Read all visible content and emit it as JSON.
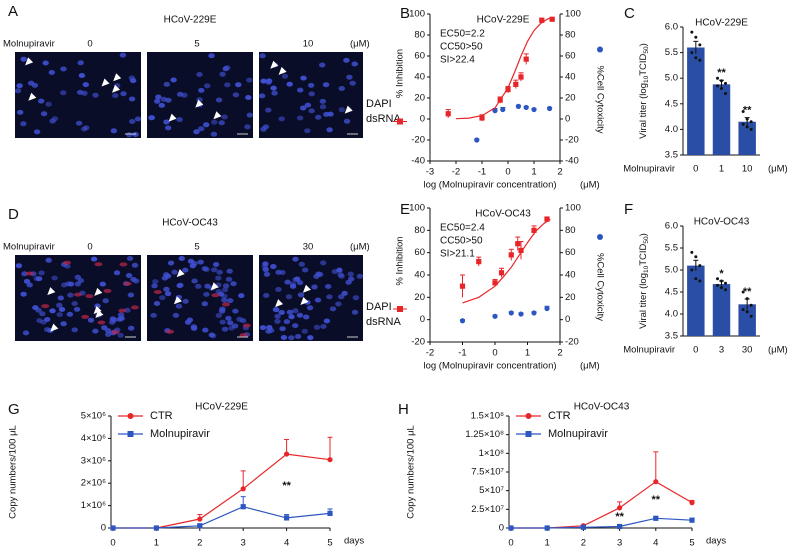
{
  "image_panels": [
    {
      "label": "A",
      "title": "HCoV-229E",
      "treatment": "Molnupiravir",
      "doses": [
        "0",
        "5",
        "10"
      ],
      "unit": "(μM)",
      "stains": [
        "DAPI",
        "dsRNA"
      ],
      "stain_colors": [
        "#3b3bd6",
        "#e02424"
      ]
    },
    {
      "label": "D",
      "title": "HCoV-OC43",
      "treatment": "Molnupiravir",
      "doses": [
        "0",
        "5",
        "30"
      ],
      "unit": "(μM)",
      "stains": [
        "DAPI",
        "dsRNA"
      ],
      "stain_colors": [
        "#3b3bd6",
        "#e02424"
      ]
    }
  ],
  "chart_data": [
    {
      "type": "scatter",
      "panel": "B",
      "title": "HCoV-229E",
      "annotations": [
        "EC50=2.2",
        "CC50>50",
        "SI>22.4"
      ],
      "xlabel": "log (Molnupiravir concentration)",
      "xunit": "(μM)",
      "ylabel": "% Inhibition",
      "y2label": "%Cell Cytoxicity",
      "xlim": [
        -3,
        2
      ],
      "xticks": [
        -3,
        -2,
        -1,
        0,
        1,
        2
      ],
      "ylim": [
        -40,
        100
      ],
      "yticks": [
        -40,
        -20,
        0,
        20,
        40,
        60,
        80,
        100
      ],
      "y2lim": [
        -40,
        100
      ],
      "y2ticks": [
        -40,
        -20,
        0,
        20,
        40,
        60,
        80,
        100
      ],
      "series": [
        {
          "color": "#e8262a",
          "marker": "square",
          "x": [
            -2.3,
            -1,
            -0.3,
            0,
            0.3,
            0.5,
            0.7,
            1.3,
            1.7
          ],
          "values": [
            5,
            1,
            18,
            28,
            33,
            40,
            57,
            94,
            95
          ],
          "errors": [
            4,
            3,
            3,
            3,
            4,
            4,
            5,
            2,
            1
          ]
        },
        {
          "color": "#2c56c0",
          "marker": "circle",
          "axis": "y2",
          "x": [
            -1.2,
            -0.5,
            -0.2,
            0.4,
            0.7,
            1.0,
            1.6
          ],
          "values": [
            -20,
            8,
            9,
            12,
            11,
            9,
            10
          ],
          "errors": [
            1,
            2,
            2,
            1,
            1,
            1,
            1
          ]
        },
        {
          "color": "#e8262a",
          "marker": "none",
          "x": [
            -2,
            -1.5,
            -1,
            -0.5,
            0,
            0.25,
            0.5,
            0.75,
            1,
            1.25,
            1.5,
            1.7
          ],
          "values": [
            0.3,
            0.9,
            3.2,
            10.6,
            29.7,
            44.3,
            60,
            73.9,
            84.2,
            90.9,
            95,
            96.9
          ]
        }
      ]
    },
    {
      "type": "bar",
      "panel": "C",
      "title": "HCoV-229E",
      "ylabel": [
        "Viral titer (log",
        "10",
        "TCID",
        "50",
        ")"
      ],
      "xlabel": "Molnupiravir",
      "xunit": "(μM)",
      "color": "#2a4ea6",
      "categories": [
        "0",
        "1",
        "10"
      ],
      "values": [
        5.6,
        4.88,
        4.15
      ],
      "errors": [
        0.12,
        0.08,
        0.08
      ],
      "points": [
        [
          5.9,
          5.8,
          5.65,
          5.5,
          5.4,
          5.35
        ],
        [
          5.0,
          4.95,
          4.9,
          4.85,
          4.8,
          4.7
        ],
        [
          4.35,
          4.2,
          4.15,
          4.1,
          4.05,
          4.0
        ]
      ],
      "significance": [
        null,
        "**",
        "**"
      ],
      "ylim": [
        3.5,
        6.0
      ],
      "yticks": [
        3.5,
        {
          "value": 4,
          "label": "4.0"
        },
        4.5,
        {
          "value": 5,
          "label": "5.0"
        },
        5.5,
        {
          "value": 6,
          "label": "6.0"
        }
      ]
    },
    {
      "type": "scatter",
      "panel": "E",
      "title": "HCoV-OC43",
      "annotations": [
        "EC50=2.4",
        "CC50>50",
        "SI>21.1"
      ],
      "xlabel": "log (Molnupiravir concentration)",
      "xunit": "(μM)",
      "ylabel": "% Inhibition",
      "y2label": "%Cell Cytoxicity",
      "xlim": [
        -2,
        2
      ],
      "xticks": [
        -2,
        -1,
        0,
        1,
        2
      ],
      "ylim": [
        -20,
        100
      ],
      "yticks": [
        -20,
        0,
        20,
        40,
        60,
        80,
        100
      ],
      "y2lim": [
        -20,
        100
      ],
      "y2ticks": [
        -20,
        0,
        20,
        40,
        60,
        80,
        100
      ],
      "series": [
        {
          "color": "#e8262a",
          "marker": "square",
          "x": [
            -1,
            -0.5,
            0,
            0.2,
            0.5,
            0.7,
            0.8,
            1.2,
            1.6
          ],
          "values": [
            30,
            52,
            33,
            42,
            58,
            68,
            62,
            80,
            90
          ],
          "errors": [
            10,
            4,
            3,
            4,
            5,
            6,
            8,
            4,
            2
          ]
        },
        {
          "color": "#2c56c0",
          "marker": "circle",
          "axis": "y2",
          "x": [
            -1,
            0,
            0.5,
            0.8,
            1.2,
            1.6
          ],
          "values": [
            -1,
            3,
            6,
            5,
            6,
            10
          ],
          "errors": [
            1,
            1,
            1,
            1,
            1,
            2
          ]
        },
        {
          "color": "#e8262a",
          "marker": "none",
          "x": [
            -1,
            -0.5,
            0,
            0.25,
            0.5,
            0.75,
            1,
            1.25,
            1.5,
            1.7
          ],
          "values": [
            15,
            20,
            30,
            38,
            47,
            58,
            69,
            79,
            86,
            90
          ]
        }
      ]
    },
    {
      "type": "bar",
      "panel": "F",
      "title": "HCoV-OC43",
      "ylabel": [
        "Viral titer (log",
        "10",
        "TCID",
        "50",
        ")"
      ],
      "xlabel": "Molnupiravir",
      "xunit": "(μM)",
      "color": "#2a4ea6",
      "categories": [
        "0",
        "3",
        "30"
      ],
      "values": [
        5.1,
        4.68,
        4.22
      ],
      "errors": [
        0.12,
        0.07,
        0.12
      ],
      "points": [
        [
          5.4,
          5.3,
          5.1,
          5.0,
          4.8,
          4.75
        ],
        [
          4.8,
          4.75,
          4.7,
          4.65,
          4.6,
          4.55
        ],
        [
          4.5,
          4.35,
          4.2,
          4.1,
          4.05,
          3.95
        ]
      ],
      "significance": [
        null,
        "*",
        "**"
      ],
      "ylim": [
        3.5,
        6.0
      ],
      "yticks": [
        3.5,
        {
          "value": 4,
          "label": "4.0"
        },
        4.5,
        {
          "value": 5,
          "label": "5.0"
        },
        5.5,
        {
          "value": 6,
          "label": "6.0"
        }
      ]
    },
    {
      "type": "line",
      "panel": "G",
      "title": "HCoV-229E",
      "ylabel": "Copy numbers/100 μL",
      "xlabel": "days",
      "x": [
        0,
        1,
        2,
        3,
        4,
        5
      ],
      "xlim": [
        0,
        5
      ],
      "xticks": [
        0,
        1,
        2,
        3,
        4,
        5
      ],
      "ylim": [
        0,
        5000000
      ],
      "yticks": [
        0,
        {
          "value": 1000000,
          "label": "1×10⁶"
        },
        {
          "value": 2000000,
          "label": "2×10⁶"
        },
        {
          "value": 3000000,
          "label": "3×10⁶"
        },
        {
          "value": 4000000,
          "label": "4×10⁶"
        },
        {
          "value": 5000000,
          "label": "5×10⁶"
        }
      ],
      "significance": [
        null,
        null,
        null,
        null,
        "**",
        null
      ],
      "series": [
        {
          "name": "CTR",
          "color": "#e8262a",
          "marker": "circle",
          "values": [
            0,
            0,
            400000,
            1750000,
            3300000,
            3050000
          ],
          "errors": [
            0,
            0,
            200000,
            800000,
            650000,
            1000000
          ]
        },
        {
          "name": "Molnupiravir",
          "color": "#2c56c0",
          "marker": "square",
          "values": [
            0,
            0,
            100000,
            950000,
            450000,
            650000
          ],
          "errors": [
            0,
            0,
            50000,
            450000,
            150000,
            200000
          ]
        }
      ]
    },
    {
      "type": "line",
      "panel": "H",
      "title": "HCoV-OC43",
      "ylabel": "Copy numbers/100 μL",
      "xlabel": "days",
      "x": [
        0,
        1,
        2,
        3,
        4,
        5
      ],
      "xlim": [
        0,
        5
      ],
      "xticks": [
        0,
        1,
        2,
        3,
        4,
        5
      ],
      "ylim": [
        0,
        150000000
      ],
      "yticks": [
        0,
        {
          "value": 25000000,
          "label": "2.5×10⁷"
        },
        {
          "value": 50000000,
          "label": "5×10⁷"
        },
        {
          "value": 75000000,
          "label": "7.5×10⁷"
        },
        {
          "value": 100000000,
          "label": "1×10⁸"
        },
        {
          "value": 125000000,
          "label": "1.25×10⁸"
        },
        {
          "value": 150000000,
          "label": "1.5×10⁸"
        }
      ],
      "significance": [
        null,
        null,
        null,
        "**",
        "**",
        null
      ],
      "series": [
        {
          "name": "CTR",
          "color": "#e8262a",
          "marker": "circle",
          "values": [
            0,
            0,
            3000000,
            27000000,
            62000000,
            34000000
          ],
          "errors": [
            0,
            0,
            1000000,
            8000000,
            40000000,
            3000000
          ]
        },
        {
          "name": "Molnupiravir",
          "color": "#2c56c0",
          "marker": "square",
          "values": [
            0,
            0,
            1000000,
            2000000,
            13000000,
            10500000
          ],
          "errors": [
            0,
            0,
            500000,
            1000000,
            1500000,
            1000000
          ]
        }
      ]
    }
  ]
}
